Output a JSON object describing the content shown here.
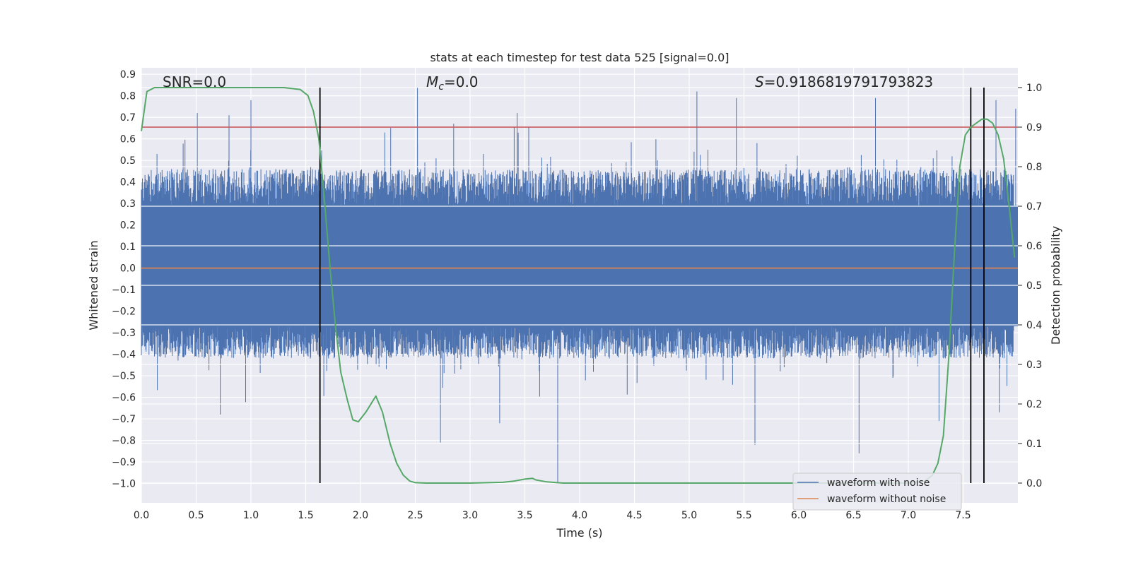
{
  "chart_data": {
    "type": "line",
    "title": "stats at each timestep for test data 525 [signal=0.0]",
    "xlabel": "Time (s)",
    "ylabel": "Whitened strain",
    "y2label": "Detection probability",
    "xlim": [
      0.0,
      8.0
    ],
    "ylim": [
      -1.09,
      0.93
    ],
    "y2lim": [
      -0.05,
      1.05
    ],
    "x_ticks": [
      "0.0",
      "0.5",
      "1.0",
      "1.5",
      "2.0",
      "2.5",
      "3.0",
      "3.5",
      "4.0",
      "4.5",
      "5.0",
      "5.5",
      "6.0",
      "6.5",
      "7.0",
      "7.5"
    ],
    "y_ticks": [
      "0.9",
      "0.8",
      "0.7",
      "0.6",
      "0.5",
      "0.4",
      "0.3",
      "0.2",
      "0.1",
      "0.0",
      "−0.1",
      "−0.2",
      "−0.3",
      "−0.4",
      "−0.5",
      "−0.6",
      "−0.7",
      "−0.8",
      "−0.9",
      "−1.0"
    ],
    "y2_ticks": [
      "1.0",
      "0.9",
      "0.8",
      "0.7",
      "0.6",
      "0.5",
      "0.4",
      "0.3",
      "0.2",
      "0.1",
      "0.0"
    ],
    "grid": true,
    "legend_position": "lower-right",
    "annotations": {
      "snr": "SNR=0.0",
      "mc": "=0.0",
      "mc_symbol": "M",
      "mc_subscript": "c",
      "s": "=0.9186819791793823",
      "s_symbol": "S"
    },
    "series": [
      {
        "name": "waveform with noise",
        "color": "#4c72b0",
        "style": "dense noise",
        "band_low": -0.42,
        "band_high": 0.46,
        "core_low": -0.27,
        "core_high": 0.29,
        "peaks": [
          [
            0.51,
            0.72
          ],
          [
            0.8,
            0.71
          ],
          [
            1.0,
            0.78
          ],
          [
            2.52,
            0.84
          ],
          [
            2.85,
            0.67
          ],
          [
            3.43,
            0.72
          ],
          [
            5.07,
            0.82
          ],
          [
            5.43,
            0.79
          ],
          [
            6.7,
            0.79
          ],
          [
            7.8,
            0.78
          ],
          [
            7.98,
            0.74
          ]
        ],
        "troughs": [
          [
            0.72,
            -0.68
          ],
          [
            2.73,
            -0.81
          ],
          [
            3.8,
            -1.0
          ],
          [
            3.27,
            -0.72
          ],
          [
            5.6,
            -0.82
          ],
          [
            6.55,
            -0.86
          ],
          [
            7.28,
            -0.71
          ],
          [
            7.83,
            -0.67
          ]
        ]
      },
      {
        "name": "waveform without noise",
        "color": "#dd8452",
        "x": [
          0.0,
          8.0
        ],
        "y": [
          0.0,
          0.0
        ]
      },
      {
        "name": "",
        "axis": "right",
        "color": "#55a868",
        "x": [
          0.0,
          0.05,
          0.12,
          0.2,
          0.5,
          1.0,
          1.3,
          1.45,
          1.52,
          1.57,
          1.62,
          1.67,
          1.72,
          1.77,
          1.82,
          1.88,
          1.93,
          1.98,
          2.05,
          2.14,
          2.2,
          2.27,
          2.33,
          2.39,
          2.45,
          2.5,
          2.6,
          3.0,
          3.3,
          3.4,
          3.5,
          3.57,
          3.6,
          3.7,
          3.85,
          4.0,
          5.0,
          6.0,
          6.5,
          7.0,
          7.15,
          7.22,
          7.27,
          7.32,
          7.37,
          7.42,
          7.47,
          7.52,
          7.57,
          7.62,
          7.67,
          7.72,
          7.77,
          7.82,
          7.87,
          7.92,
          7.97
        ],
        "y": [
          0.89,
          0.99,
          1.0,
          1.0,
          1.0,
          1.0,
          1.0,
          0.995,
          0.98,
          0.94,
          0.87,
          0.72,
          0.55,
          0.4,
          0.28,
          0.21,
          0.16,
          0.155,
          0.18,
          0.22,
          0.18,
          0.1,
          0.05,
          0.02,
          0.005,
          0.001,
          0.0,
          0.0,
          0.002,
          0.005,
          0.01,
          0.012,
          0.008,
          0.003,
          0.0,
          0.0,
          0.0,
          0.0,
          0.0,
          0.0,
          0.005,
          0.02,
          0.05,
          0.12,
          0.32,
          0.58,
          0.8,
          0.88,
          0.9,
          0.91,
          0.92,
          0.92,
          0.91,
          0.88,
          0.82,
          0.7,
          0.57
        ]
      }
    ],
    "reference_lines": {
      "horizontal_right_axis": [
        {
          "value": 0.9,
          "color": "#c44e52"
        }
      ],
      "vertical": [
        {
          "x": 1.63,
          "y2_from": 0.0,
          "y2_to": 1.0
        },
        {
          "x": 7.57,
          "y2_from": 0.0,
          "y2_to": 1.0
        },
        {
          "x": 7.69,
          "y2_from": 0.0,
          "y2_to": 1.0
        }
      ]
    }
  }
}
